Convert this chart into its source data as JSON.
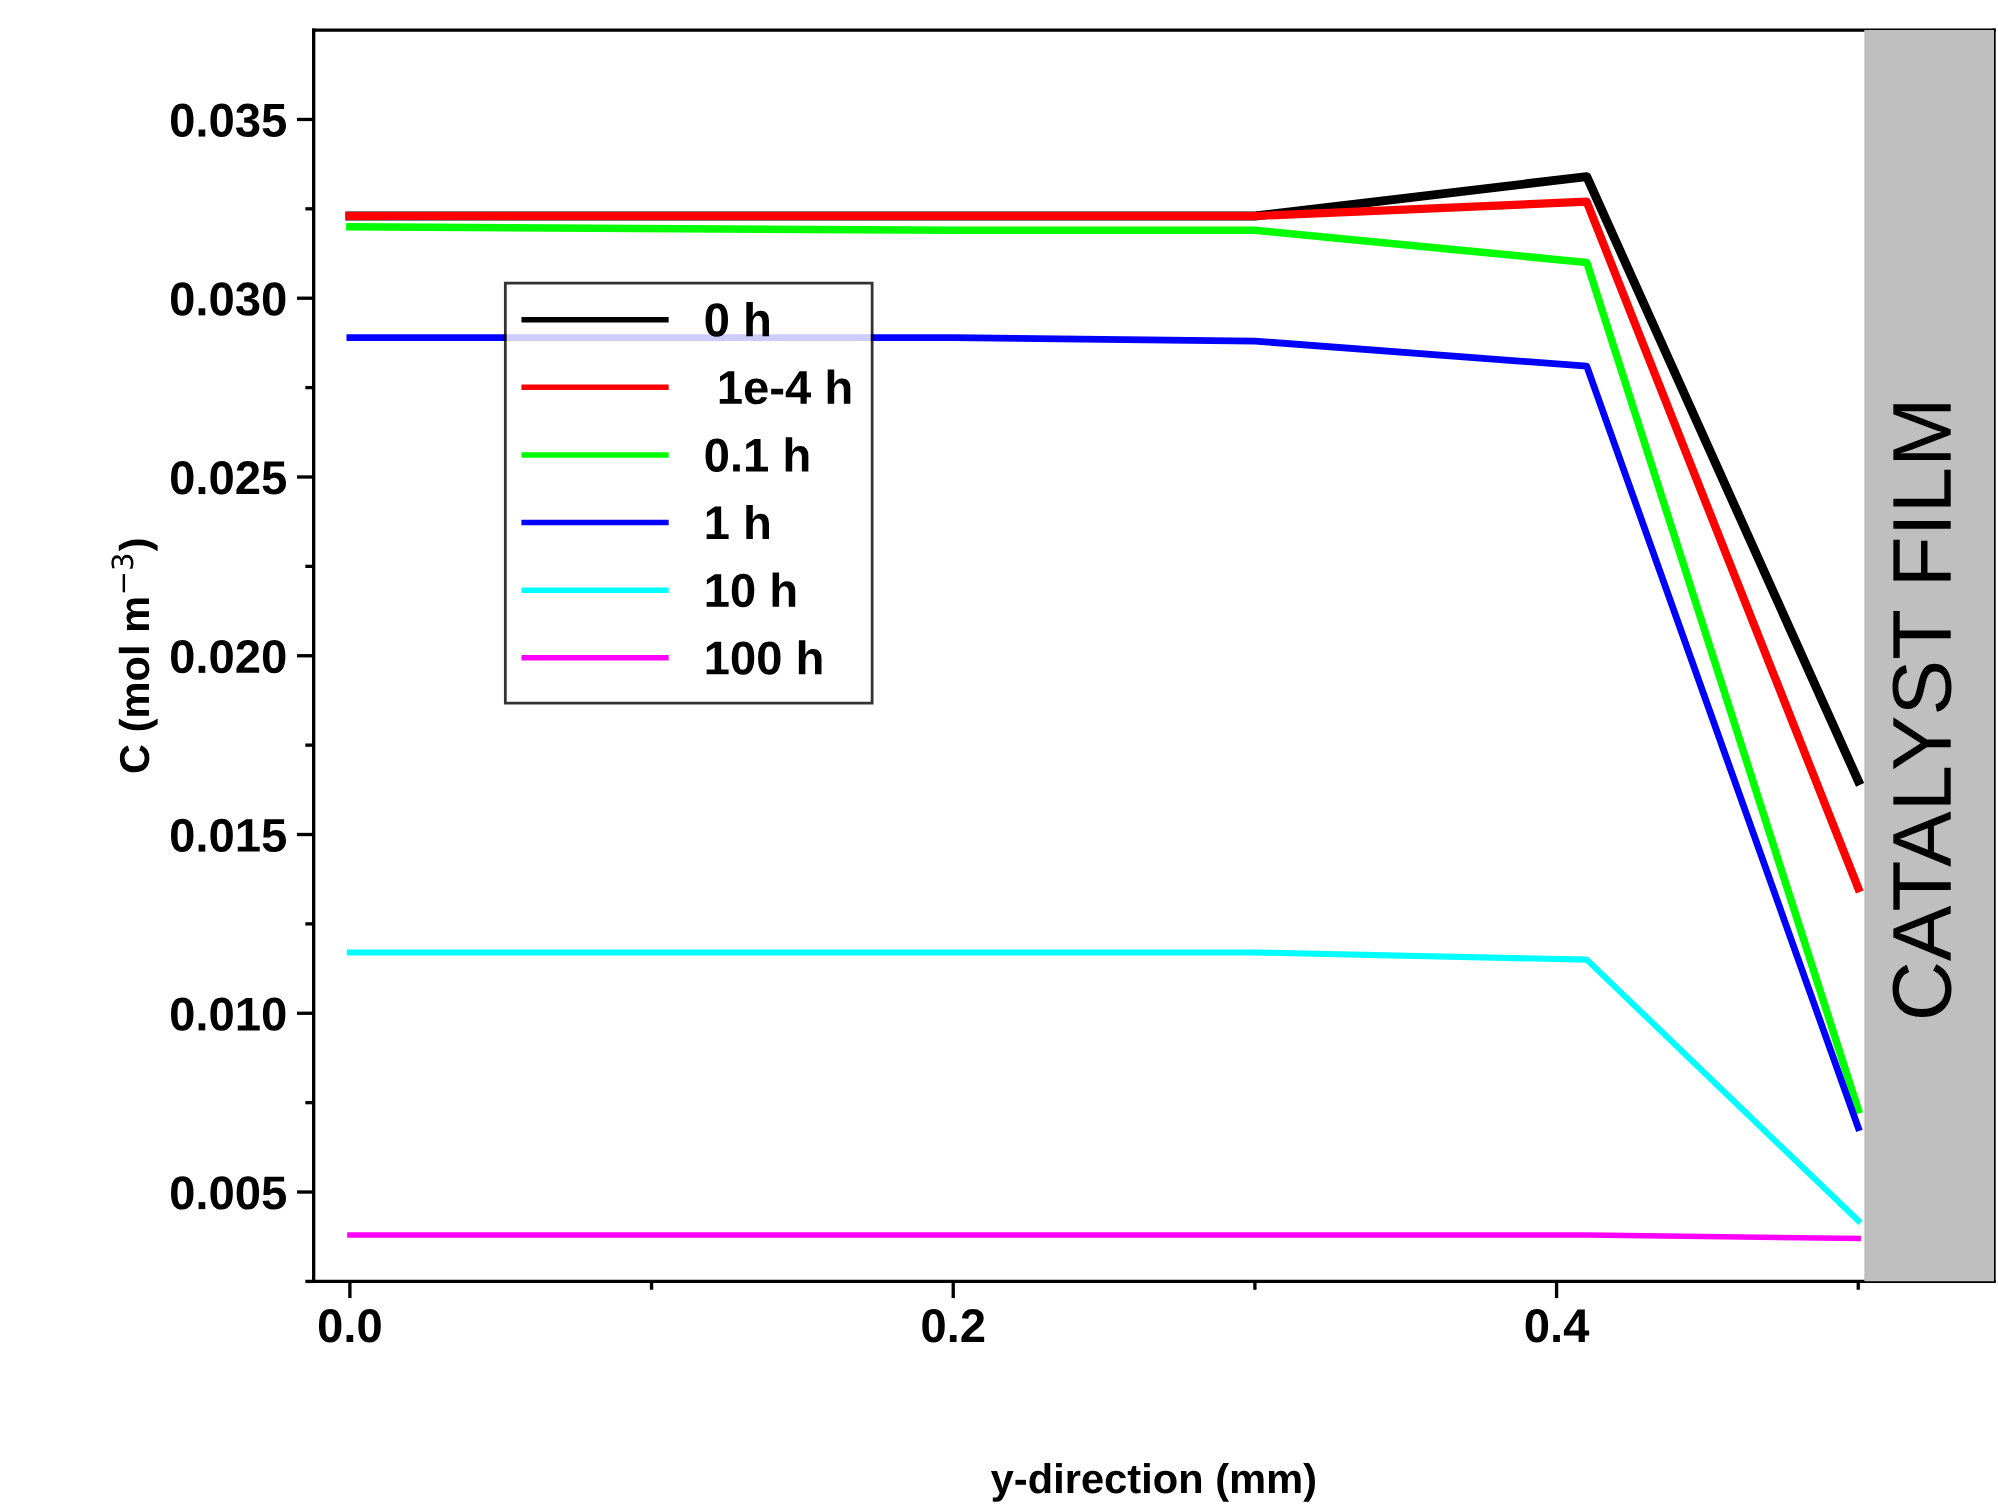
{
  "chart_data": {
    "type": "line",
    "xlabel": "y-direction (mm)",
    "ylabel": "C (mol m$^{−3}$)",
    "x": [
      0.0,
      0.2,
      0.3,
      0.41,
      0.5
    ],
    "series": [
      {
        "name": "0 h",
        "color": "#000000",
        "values": [
          0.0323,
          0.0323,
          0.0323,
          0.0334,
          0.0165
        ]
      },
      {
        "name": " 1e-4 h",
        "color": "#ff0000",
        "values": [
          0.0323,
          0.0323,
          0.0323,
          0.0327,
          0.0135
        ]
      },
      {
        "name": "0.1 h",
        "color": "#00ff00",
        "values": [
          0.032,
          0.0319,
          0.0319,
          0.031,
          0.0073
        ]
      },
      {
        "name": "1 h",
        "color": "#0000ff",
        "values": [
          0.0289,
          0.0289,
          0.0288,
          0.0281,
          0.0068
        ]
      },
      {
        "name": "10 h",
        "color": "#00ffff",
        "values": [
          0.0117,
          0.0117,
          0.0117,
          0.0115,
          0.0042
        ]
      },
      {
        "name": "100 h",
        "color": "#ff00ff",
        "values": [
          0.0038,
          0.0038,
          0.0038,
          0.0038,
          0.0037
        ]
      }
    ],
    "xlim": [
      -0.012,
      0.545
    ],
    "ylim": [
      0.0025,
      0.0375
    ],
    "xticks": [
      {
        "value": 0.0,
        "label": "0.0"
      },
      {
        "value": 0.1,
        "label": null
      },
      {
        "value": 0.2,
        "label": "0.2"
      },
      {
        "value": 0.3,
        "label": null
      },
      {
        "value": 0.4,
        "label": "0.4"
      },
      {
        "value": 0.5,
        "label": null
      }
    ],
    "yticks": [
      {
        "value": 0.0025,
        "label": null
      },
      0.005,
      {
        "value": 0.0075,
        "label": null
      },
      {
        "value": 0.01,
        "label": "0.010"
      },
      {
        "value": 0.0125,
        "label": null
      },
      0.015,
      {
        "value": 0.0175,
        "label": null
      },
      {
        "value": 0.02,
        "label": "0.020"
      },
      {
        "value": 0.0225,
        "label": null
      },
      0.025,
      {
        "value": 0.0275,
        "label": null
      },
      {
        "value": 0.03,
        "label": "0.030"
      },
      {
        "value": 0.0325,
        "label": null
      },
      0.035
    ],
    "bands": [
      {
        "axis": "x",
        "from": 0.502,
        "to": 0.545,
        "label": "CATALYST FILM",
        "color": "#bfbfbf"
      }
    ],
    "grid": false,
    "legend": "center left",
    "marker": "none",
    "line_style": "solid"
  }
}
